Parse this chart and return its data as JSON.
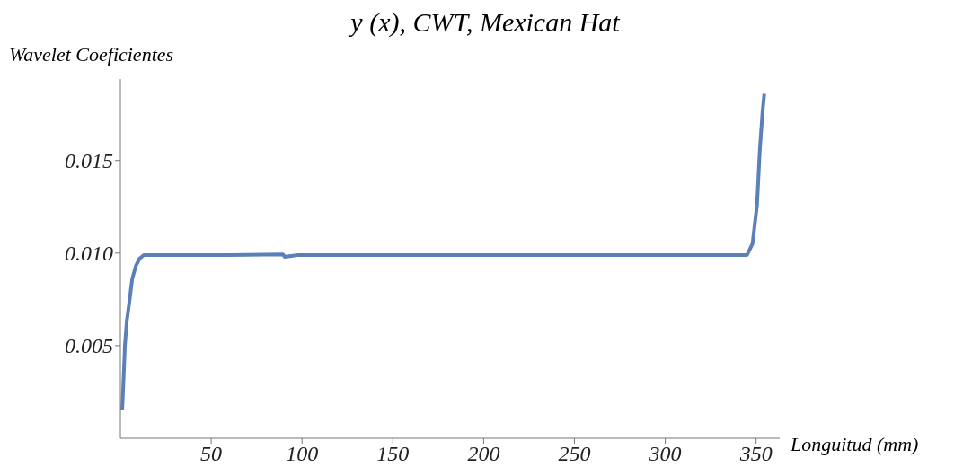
{
  "chart_data": {
    "type": "line",
    "title": "y (x),  CWT,  Mexican Hat",
    "xlabel": "Longuitud (mm)",
    "ylabel": "Wavelet Coeficientes",
    "x": [
      1,
      1.5,
      2.5,
      3.5,
      5,
      6.5,
      8.5,
      10.5,
      13,
      30,
      60,
      89.5,
      90.5,
      94,
      98,
      150,
      200,
      250,
      300,
      340,
      345,
      348,
      350.5,
      352,
      353.5,
      354.5
    ],
    "series": [
      {
        "color": "#5b7fb8",
        "values": [
          0.00152,
          0.0026,
          0.005,
          0.0063,
          0.0074,
          0.0086,
          0.0093,
          0.0097,
          0.0099,
          0.0099,
          0.0099,
          0.00993,
          0.0098,
          0.00985,
          0.0099,
          0.0099,
          0.0099,
          0.0099,
          0.0099,
          0.0099,
          0.0099,
          0.0105,
          0.0126,
          0.0155,
          0.0176,
          0.0186
        ]
      }
    ],
    "xlim": [
      0,
      363
    ],
    "xticks": [
      50,
      100,
      150,
      200,
      250,
      300,
      350
    ],
    "ylim": [
      0,
      0.0194
    ],
    "yticks": [
      {
        "value": 0.005,
        "label": "0.005"
      },
      {
        "value": 0.01,
        "label": "0.010"
      },
      {
        "value": 0.015,
        "label": "0.015"
      }
    ],
    "grid": false,
    "legend": false,
    "marker": "none",
    "line_style": "solid"
  }
}
